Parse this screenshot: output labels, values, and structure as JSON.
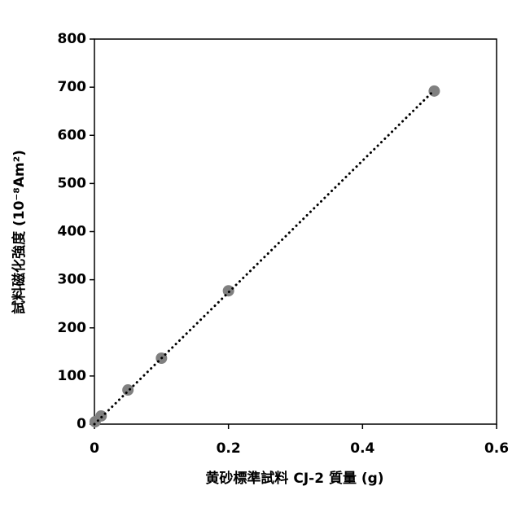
{
  "chart_data": {
    "type": "scatter",
    "xlabel": "黄砂標準試料 CJ-2 質量 (g)",
    "ylabel": "試料磁化強度 (10⁻⁸Am²)",
    "x": [
      0.001,
      0.01,
      0.05,
      0.1,
      0.2,
      0.507
    ],
    "values": [
      5,
      17,
      71,
      137,
      277,
      692
    ],
    "color": "#808080",
    "trendline": "linear",
    "xlim": [
      0,
      0.6
    ],
    "xticks": [
      0,
      0.2,
      0.4,
      0.6
    ],
    "ylim": [
      0,
      800
    ],
    "yticks": [
      0,
      100,
      200,
      300,
      400,
      500,
      600,
      700,
      800
    ]
  }
}
